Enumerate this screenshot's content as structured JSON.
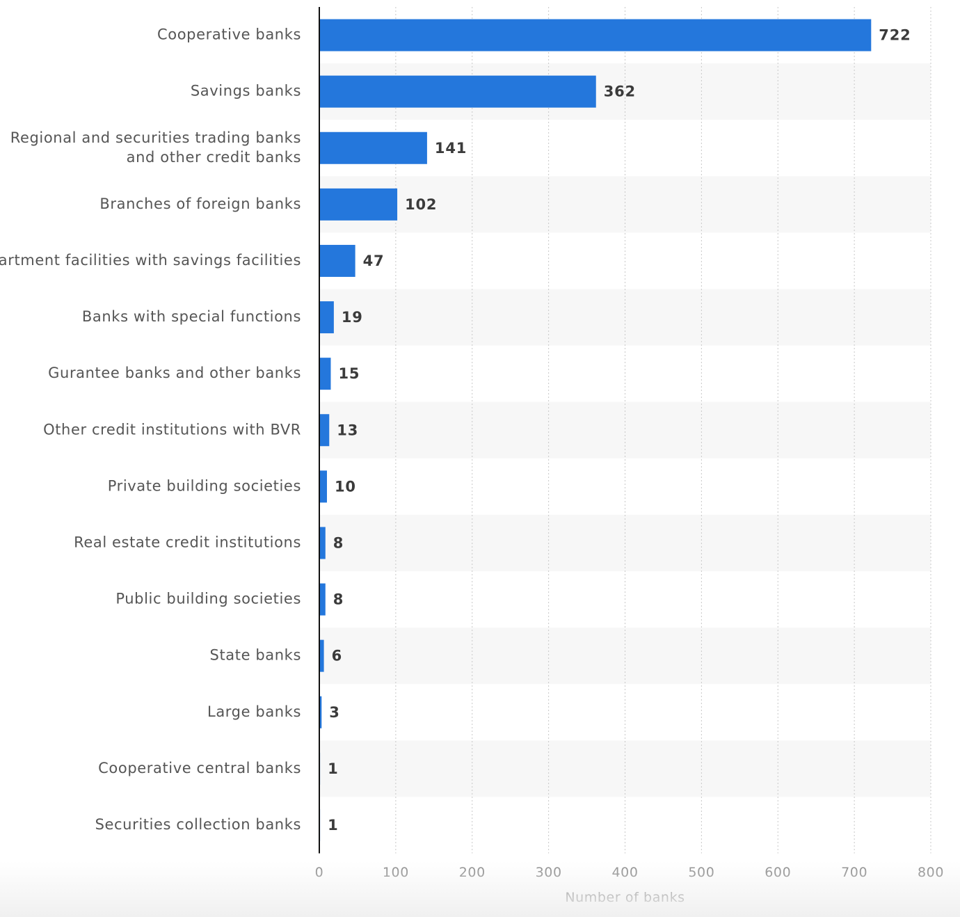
{
  "chart_data": {
    "type": "bar",
    "orientation": "horizontal",
    "categories": [
      [
        "Cooperative banks"
      ],
      [
        "Savings banks"
      ],
      [
        "Regional and securities trading banks",
        "and other credit banks"
      ],
      [
        "Branches of foreign banks"
      ],
      [
        "Apartment facilities with savings facilities"
      ],
      [
        "Banks with special functions"
      ],
      [
        "Gurantee banks and other banks"
      ],
      [
        "Other credit institutions with BVR"
      ],
      [
        "Private building societies"
      ],
      [
        "Real estate credit institutions"
      ],
      [
        "Public building societies"
      ],
      [
        "State banks"
      ],
      [
        "Large banks"
      ],
      [
        "Cooperative central banks"
      ],
      [
        "Securities collection banks"
      ]
    ],
    "values": [
      722,
      362,
      141,
      102,
      47,
      19,
      15,
      13,
      10,
      8,
      8,
      6,
      3,
      1,
      1
    ],
    "value_labels": [
      "722",
      "362",
      "141",
      "102",
      "47",
      "19",
      "15",
      "13",
      "10",
      "8",
      "8",
      "6",
      "3",
      "1",
      "1"
    ],
    "xlabel": "Number of banks",
    "xlim": [
      0,
      800
    ],
    "xticks": [
      0,
      100,
      200,
      300,
      400,
      500,
      600,
      700,
      800
    ],
    "xtick_labels": [
      "0",
      "100",
      "200",
      "300",
      "400",
      "500",
      "600",
      "700",
      "800"
    ],
    "grid": "vertical dotted",
    "alternating_row_bands": true,
    "colors": {
      "bar": "#2477dc",
      "band": "#f7f7f7",
      "grid": "#c8c8c8",
      "axis": "#111111"
    }
  }
}
